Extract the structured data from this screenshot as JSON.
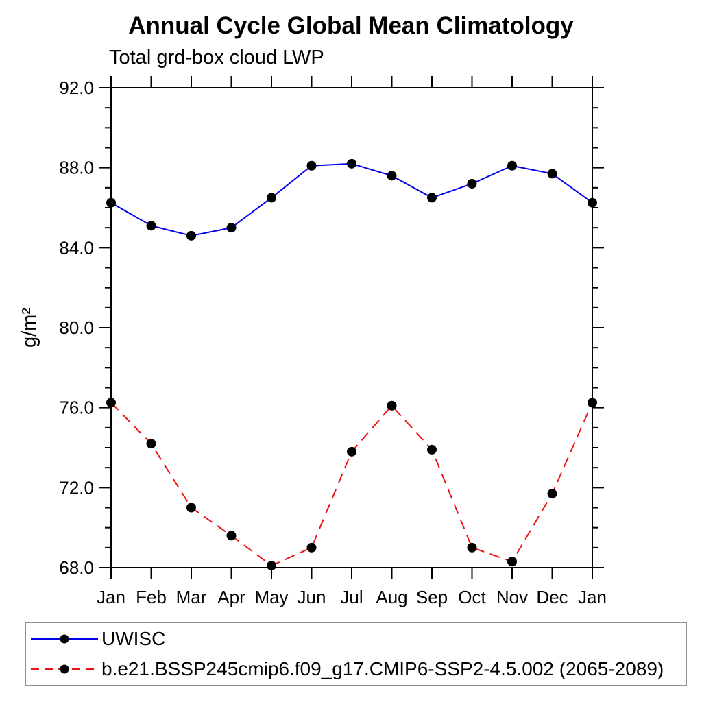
{
  "chart_data": {
    "type": "line",
    "title": "Annual Cycle Global Mean Climatology",
    "subtitle": "Total grd-box cloud LWP",
    "ylabel": "g/m²",
    "xlabel": "",
    "ylim": [
      68.0,
      92.0
    ],
    "yticks_major": {
      "values": [
        92,
        88,
        84,
        80,
        76,
        72,
        68
      ],
      "labels": [
        "92.0",
        "88.0",
        "84.0",
        "80.0",
        "76.0",
        "72.0",
        "68.0"
      ]
    },
    "ytick_minor_step": 1,
    "categories": [
      "Jan",
      "Feb",
      "Mar",
      "Apr",
      "May",
      "Jun",
      "Jul",
      "Aug",
      "Sep",
      "Oct",
      "Nov",
      "Dec",
      "Jan"
    ],
    "grid": false,
    "legend_position": "bottom-left",
    "marker": {
      "shape": "filled-circle",
      "color": "#000000"
    },
    "axis_color": "#000000",
    "series": [
      {
        "name": "UWISC",
        "color": "#0000ee",
        "line_style": "solid",
        "values": [
          86.25,
          85.1,
          84.6,
          85.0,
          86.5,
          88.1,
          88.2,
          87.6,
          86.5,
          87.2,
          88.1,
          87.7,
          86.25
        ]
      },
      {
        "name": "b.e21.BSSP245cmip6.f09_g17.CMIP6-SSP2-4.5.002 (2065-2089)",
        "color": "#ee1111",
        "line_style": "dashed",
        "values": [
          76.25,
          74.2,
          71.0,
          69.6,
          68.1,
          69.0,
          73.8,
          76.1,
          73.9,
          69.0,
          68.3,
          71.7,
          76.25
        ]
      }
    ]
  }
}
